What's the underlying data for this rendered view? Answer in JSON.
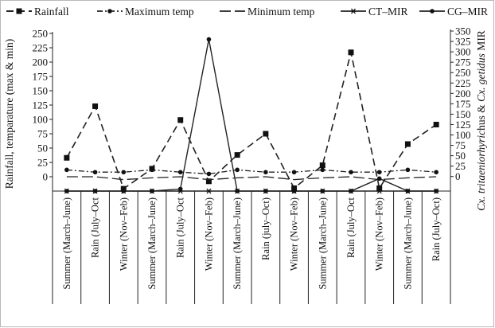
{
  "chart_data": {
    "type": "line",
    "categories": [
      "Summer (March–June)",
      "Rain (July–Oct",
      "Winter (Nov–Feb)",
      "Summer (March–June)",
      "Rain (July–Oct",
      "Winter (Nov–Feb)",
      "Summer (March–June)",
      "Rain (july–Oct)",
      "Winter (Nov–Feb)",
      "Summer (March–June)",
      "Rain (July–Oct",
      "Winter (Nov–Feb)",
      "Summer (March–June)",
      "Rain (July–Oct)"
    ],
    "y_left": {
      "label": "Rainfall, temparature (max & min)",
      "range": [
        -25,
        250
      ],
      "ticks": [
        0,
        25,
        50,
        75,
        100,
        125,
        150,
        175,
        200,
        225,
        250
      ],
      "tick_labels": [
        "0",
        "25",
        "50",
        "75",
        "100",
        "125",
        "150",
        "175",
        "200",
        "225",
        "250"
      ]
    },
    "y_right": {
      "label_parts": [
        {
          "text": "Cx. tritaeniorhyric",
          "italic": true
        },
        {
          "text": "hus & ",
          "italic": false
        },
        {
          "text": "Cx. getidus",
          "italic": true
        },
        {
          "text": " MIR",
          "italic": false
        }
      ],
      "range": [
        -35,
        350
      ],
      "ticks": [
        0,
        25,
        50,
        75,
        100,
        125,
        150,
        175,
        200,
        225,
        250,
        275,
        300,
        325,
        350
      ],
      "tick_labels": [
        "0",
        "25",
        "50",
        "75",
        "100",
        "125",
        "150",
        "175",
        "200",
        "225",
        "250",
        "275",
        "300",
        "325",
        "350"
      ]
    },
    "series": [
      {
        "name": "Rainfall",
        "axis": "left",
        "style": "dashed",
        "marker": "square",
        "values": [
          33,
          123,
          -21,
          14,
          99,
          -8,
          38,
          75,
          -20,
          20,
          217,
          -20,
          57,
          91
        ]
      },
      {
        "name": "Maximum temp",
        "axis": "left",
        "style": "dashdot",
        "marker": "dot",
        "values": [
          12,
          8,
          8,
          12,
          8,
          5,
          12,
          8,
          8,
          12,
          8,
          8,
          12,
          8
        ]
      },
      {
        "name": "Minimum temp",
        "axis": "left",
        "style": "longdash",
        "marker": "none",
        "values": [
          0,
          0,
          -5,
          -2,
          0,
          -5,
          -2,
          0,
          -5,
          -2,
          0,
          -5,
          -2,
          0
        ]
      },
      {
        "name": "CT–MIR",
        "axis": "right",
        "style": "solid",
        "marker": "asterisk",
        "values": [
          -35,
          -35,
          -35,
          -35,
          -35,
          -35,
          -35,
          -35,
          -35,
          -35,
          -35,
          -35,
          -35,
          -35
        ]
      },
      {
        "name": "CG–MIR",
        "axis": "right",
        "style": "solid",
        "marker": "dot",
        "values": [
          -35,
          -35,
          -35,
          -35,
          -30,
          330,
          -35,
          -35,
          -35,
          -35,
          -35,
          -5,
          -35,
          -35
        ]
      }
    ],
    "legend_position": "top",
    "grid": false
  }
}
